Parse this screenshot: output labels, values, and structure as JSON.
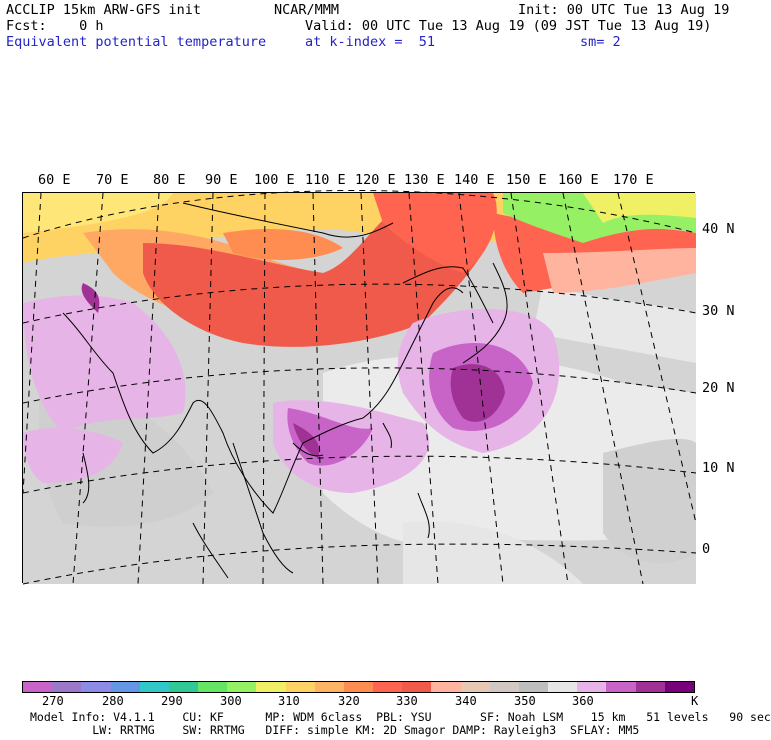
{
  "header": {
    "model_line": "ACCLIP 15km ARW-GFS init",
    "fcst_line": "Fcst:    0 h",
    "field_name": "Equivalent potential temperature",
    "org": "NCAR/MMM",
    "init": "Init: 00 UTC Tue 13 Aug 19",
    "valid": "Valid: 00 UTC Tue 13 Aug 19 (09 JST Tue 13 Aug 19)",
    "level": "at k-index =  51",
    "smooth": "sm= 2"
  },
  "map": {
    "lon_labels": [
      "60 E",
      "70 E",
      "80 E",
      "90 E",
      "100 E",
      "110 E",
      "120 E",
      "130 E",
      "140 E",
      "150 E",
      "160 E",
      "170 E"
    ],
    "lat_labels": [
      "40 N",
      "30 N",
      "20 N",
      "10 N",
      "0"
    ]
  },
  "colorbar": {
    "colors": [
      "#c864c8",
      "#9b78c8",
      "#8c8ce6",
      "#6496e6",
      "#32c8c8",
      "#32c896",
      "#64e664",
      "#96f064",
      "#f0f064",
      "#ffd264",
      "#ffb464",
      "#ff8c50",
      "#ff6450",
      "#f05a4b",
      "#ffb4a0",
      "#e6c8b4",
      "#d2c8c3",
      "#bebebe",
      "#e6e6e6",
      "#e6b4e6",
      "#c864c8",
      "#a03296",
      "#780078"
    ],
    "labels": [
      "270",
      "280",
      "290",
      "300",
      "310",
      "320",
      "330",
      "340",
      "350",
      "360",
      "K"
    ]
  },
  "footer": {
    "line1": "Model Info: V4.1.1    CU: KF      MP: WDM 6class  PBL: YSU       SF: Noah LSM    15 km   51 levels   90 sec",
    "line2": "         LW: RRTMG    SW: RRTMG   DIFF: simple KM: 2D Smagor DAMP: Rayleigh3  SFLAY: MM5"
  }
}
